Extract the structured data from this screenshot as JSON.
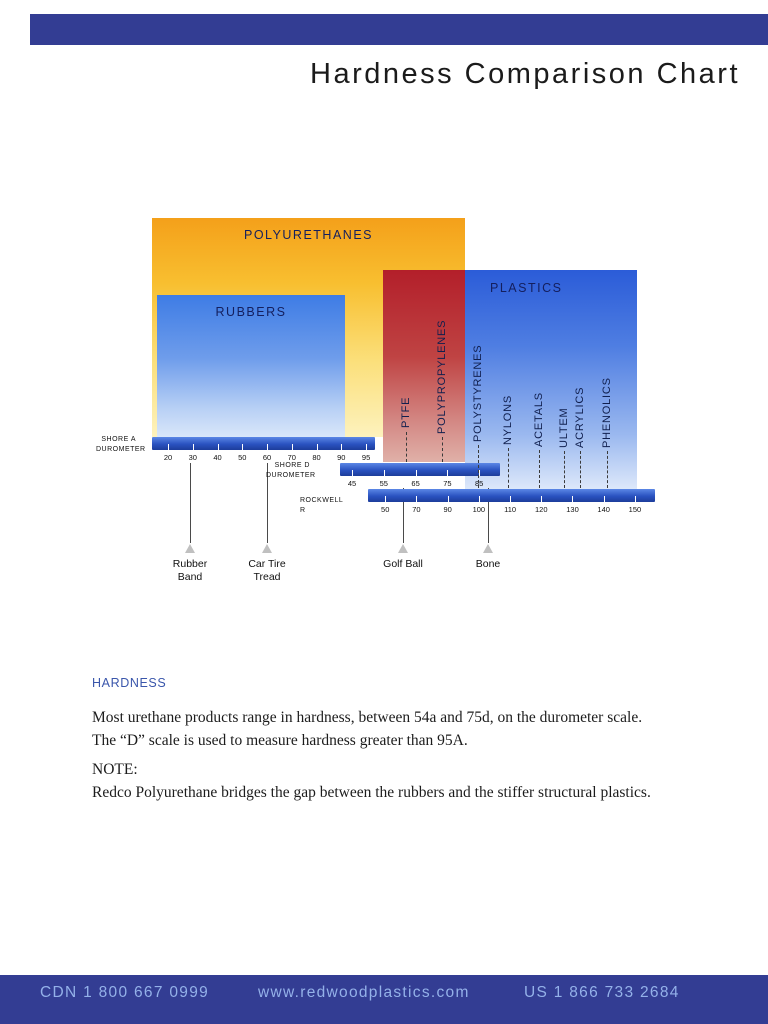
{
  "title": "Hardness Comparison Chart",
  "colors": {
    "header_bar": "#333d93",
    "footer_bar": "#333d93",
    "footer_text": "#94b1e9",
    "section_heading_blue": "#3a56ab",
    "polyurethanes_top": "#f4a01a",
    "rubbers_top": "#3e7ce5",
    "polypropylenes_top": "#b31f2a",
    "plastics_top": "#2b5cd8",
    "scale_bar_blue": "#2a52c0"
  },
  "chart_data": {
    "type": "range-comparison",
    "title": "Hardness Comparison Chart",
    "description": "Overlapping material-family blocks aligned over three hardness scales (Shore A, Shore D, Rockwell R), with common reference objects marked below.",
    "blocks": [
      {
        "label": "POLYURETHANES",
        "color_family": "yellow-orange",
        "range": "Shore A 20 to Shore D ~80"
      },
      {
        "label": "RUBBERS",
        "color_family": "blue",
        "range": "Shore A ~20 to ~90"
      },
      {
        "label": "POLYPROPYLENES",
        "color_family": "red",
        "range": "Shore D ~55 to ~80"
      },
      {
        "label": "PLASTICS",
        "color_family": "blue",
        "range": "Rockwell R ~95 to 150"
      }
    ],
    "scales": [
      {
        "name": "SHORE A DUROMETER",
        "label_line1": "SHORE A",
        "label_line2": "DUROMETER",
        "ticks": [
          "20",
          "30",
          "40",
          "50",
          "60",
          "70",
          "80",
          "90",
          "95"
        ]
      },
      {
        "name": "SHORE D DUROMETER",
        "label_line1": "SHORE D",
        "label_line2": "DUROMETER",
        "ticks": [
          "45",
          "55",
          "65",
          "75",
          "85"
        ]
      },
      {
        "name": "ROCKWELL R",
        "label_line1": "ROCKWELL R",
        "label_line2": "",
        "ticks": [
          "50",
          "70",
          "90",
          "100",
          "110",
          "120",
          "130",
          "140",
          "150"
        ]
      }
    ],
    "materials": [
      {
        "label": "PTFE",
        "approx_position": "Shore D ~62"
      },
      {
        "label": "POLYPROPYLENES",
        "approx_position": "Shore D ~73"
      },
      {
        "label": "POLYSTYRENES",
        "approx_position": "Rockwell R ~100"
      },
      {
        "label": "NYLONS",
        "approx_position": "Rockwell R ~108"
      },
      {
        "label": "ACETALS",
        "approx_position": "Rockwell R ~119"
      },
      {
        "label": "ULTEM",
        "approx_position": "Rockwell R ~127"
      },
      {
        "label": "ACRYLICS",
        "approx_position": "Rockwell R ~132"
      },
      {
        "label": "PHENOLICS",
        "approx_position": "Rockwell R ~141"
      }
    ],
    "reference_points": [
      {
        "label": "Rubber Band",
        "approx_position": "Shore A ~30"
      },
      {
        "label": "Car Tire Tread",
        "approx_position": "Shore A ~62"
      },
      {
        "label": "Golf Ball",
        "approx_position": "Shore D ~60"
      },
      {
        "label": "Bone",
        "approx_position": "Rockwell R ~100"
      }
    ]
  },
  "body": {
    "section_heading": "HARDNESS",
    "para_line1": "Most urethane products range in hardness, between 54a and 75d, on the durometer scale.",
    "para_line2": "The “D” scale is used to measure hardness greater than 95A.",
    "note_heading": "NOTE:",
    "note_text": "Redco Polyurethane bridges the gap between the rubbers and the stiffer structural plastics."
  },
  "footer": {
    "cdn_phone": "CDN 1 800 667 0999",
    "website": "www.redwoodplastics.com",
    "us_phone": "US 1 866 733 2684"
  }
}
